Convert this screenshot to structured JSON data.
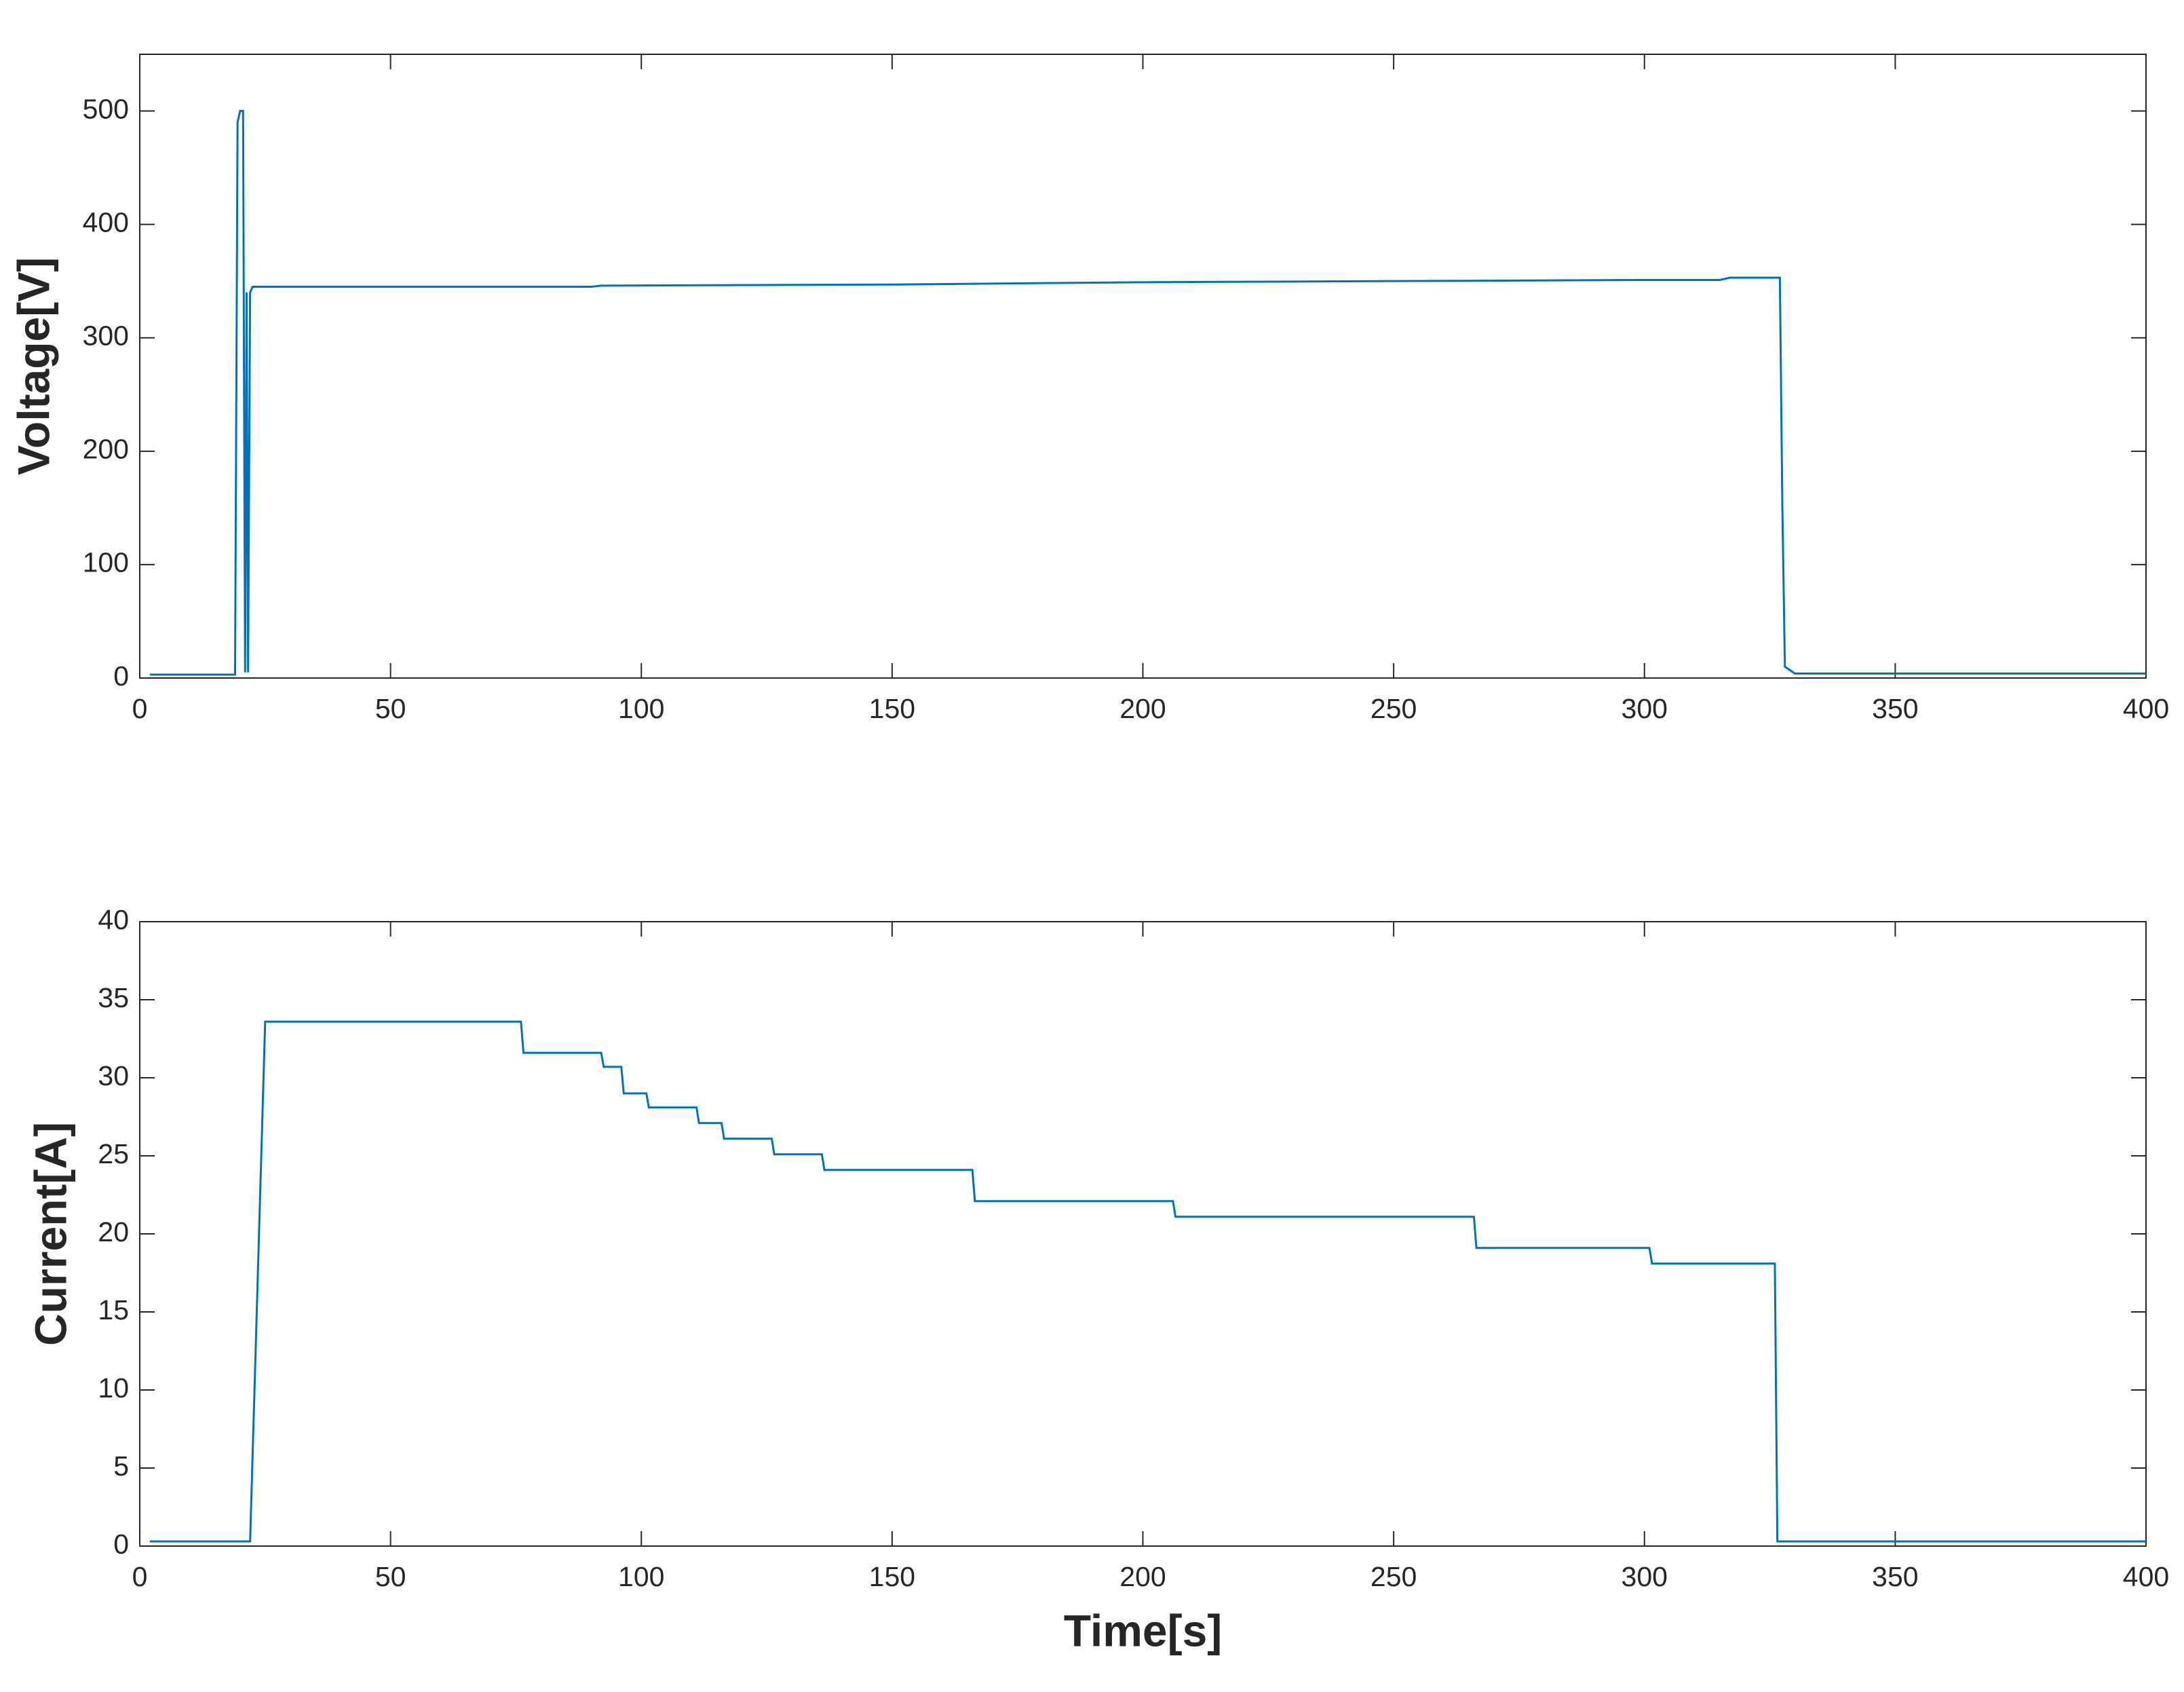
{
  "chart_data": [
    {
      "type": "line",
      "ylabel": "Voltage[V]",
      "xlim": [
        0,
        400
      ],
      "xticks": [
        0,
        50,
        100,
        150,
        200,
        250,
        300,
        350,
        400
      ],
      "ylim": [
        0,
        550
      ],
      "yticks": [
        0,
        100,
        200,
        300,
        400,
        500
      ],
      "x": [
        2,
        19,
        19.5,
        20,
        20.6,
        21,
        21.3,
        21.6,
        22,
        22.5,
        50,
        90,
        92,
        150,
        200,
        250,
        300,
        315,
        317,
        327,
        327.5,
        328,
        330,
        400
      ],
      "series": [
        {
          "name": "Voltage",
          "color": "#0072bd",
          "values": [
            3,
            3,
            490,
            500,
            500,
            5,
            340,
            5,
            340,
            345,
            345,
            345,
            346,
            347,
            349,
            350,
            351,
            351,
            353,
            353,
            150,
            10,
            4,
            4
          ]
        }
      ]
    },
    {
      "type": "line",
      "ylabel": "Current[A]",
      "xlabel": "Time[s]",
      "xlim": [
        0,
        400
      ],
      "xticks": [
        0,
        50,
        100,
        150,
        200,
        250,
        300,
        350,
        400
      ],
      "ylim": [
        0,
        40
      ],
      "yticks": [
        0,
        5,
        10,
        15,
        20,
        25,
        30,
        35,
        40
      ],
      "x": [
        2,
        22,
        25,
        76,
        76.5,
        92,
        92.5,
        96,
        96.5,
        101,
        101.5,
        111,
        111.5,
        116,
        116.5,
        126,
        126.5,
        136,
        136.5,
        166,
        166.5,
        206,
        206.5,
        266,
        266.5,
        301,
        301.5,
        326,
        326.5,
        400
      ],
      "series": [
        {
          "name": "Current",
          "color": "#0072bd",
          "values": [
            0.3,
            0.3,
            33.6,
            33.6,
            31.6,
            31.6,
            30.7,
            30.7,
            29,
            29,
            28.1,
            28.1,
            27.1,
            27.1,
            26.1,
            26.1,
            25.1,
            25.1,
            24.1,
            24.1,
            22.1,
            22.1,
            21.1,
            21.1,
            19.1,
            19.1,
            18.1,
            18.1,
            0.3,
            0.3
          ]
        }
      ]
    }
  ]
}
